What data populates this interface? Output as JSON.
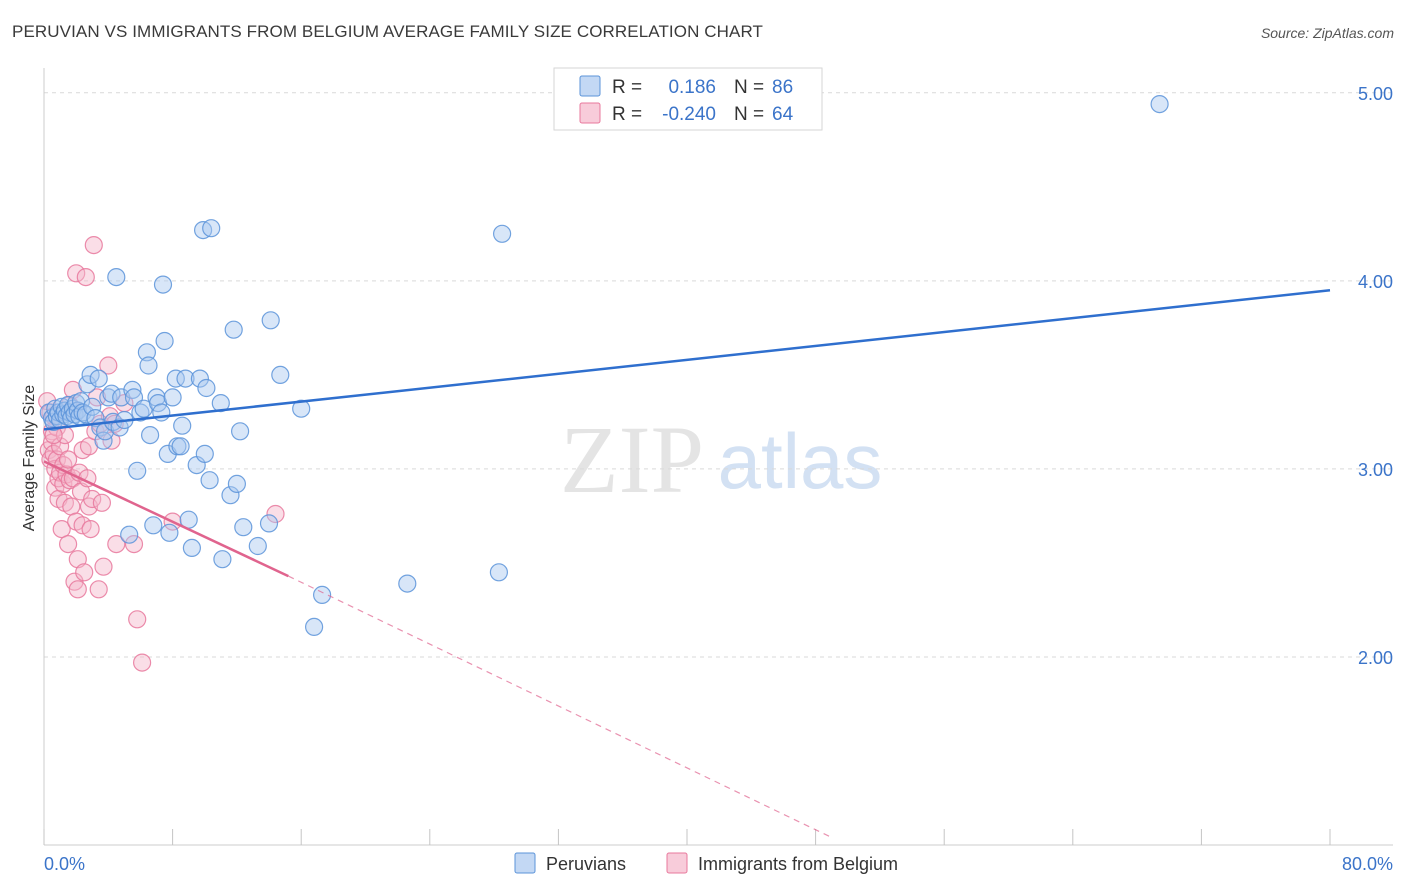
{
  "title": "PERUVIAN VS IMMIGRANTS FROM BELGIUM AVERAGE FAMILY SIZE CORRELATION CHART",
  "source": "Source: ZipAtlas.com",
  "watermark": {
    "zip": "ZIP",
    "atlas": "atlas"
  },
  "colors": {
    "blue": "#5b93d9",
    "blue_fill": "#a9c8f0",
    "blue_line": "#2f6fce",
    "pink": "#e8789c",
    "pink_fill": "#f5b6ca",
    "pink_line": "#e0648e",
    "axis_text": "#3b74c9",
    "grid": "#d9d9d9"
  },
  "legend": {
    "rows": [
      {
        "r_label": "R =",
        "r_value": "0.186",
        "n_label": "N =",
        "n_value": "86",
        "series": "blue"
      },
      {
        "r_label": "R =",
        "r_value": "-0.240",
        "n_label": "N =",
        "n_value": "64",
        "series": "pink"
      }
    ]
  },
  "bottom_legend": [
    "Peruvians",
    "Immigrants from Belgium"
  ],
  "chart_data": {
    "type": "scatter",
    "title": "PERUVIAN VS IMMIGRANTS FROM BELGIUM AVERAGE FAMILY SIZE CORRELATION CHART",
    "xlabel": "",
    "ylabel": "Average Family Size",
    "xlim": [
      0,
      80
    ],
    "ylim": [
      1.0,
      5.1
    ],
    "x_tick_labels": [
      "0.0%",
      "80.0%"
    ],
    "x_minor_ticks": [
      0,
      8,
      16,
      24,
      32,
      40,
      48,
      56,
      64,
      72,
      80
    ],
    "y_ticks": [
      2.0,
      3.0,
      4.0,
      5.0
    ],
    "y_tick_labels": [
      "2.00",
      "3.00",
      "4.00",
      "5.00"
    ],
    "series": [
      {
        "name": "Peruvians",
        "color": "blue",
        "r": 0.186,
        "n": 86,
        "trend": {
          "x0": 0,
          "y0": 3.21,
          "x1": 80,
          "y1": 3.95
        },
        "points": [
          [
            0.3,
            3.3
          ],
          [
            0.5,
            3.27
          ],
          [
            0.6,
            3.25
          ],
          [
            0.7,
            3.32
          ],
          [
            0.8,
            3.28
          ],
          [
            0.9,
            3.3
          ],
          [
            1.0,
            3.26
          ],
          [
            1.1,
            3.33
          ],
          [
            1.2,
            3.29
          ],
          [
            1.3,
            3.31
          ],
          [
            1.4,
            3.28
          ],
          [
            1.5,
            3.34
          ],
          [
            1.6,
            3.3
          ],
          [
            1.7,
            3.27
          ],
          [
            1.8,
            3.32
          ],
          [
            1.9,
            3.29
          ],
          [
            2.0,
            3.35
          ],
          [
            2.1,
            3.31
          ],
          [
            2.2,
            3.28
          ],
          [
            2.3,
            3.36
          ],
          [
            2.4,
            3.3
          ],
          [
            2.6,
            3.29
          ],
          [
            2.7,
            3.45
          ],
          [
            2.9,
            3.5
          ],
          [
            3.0,
            3.33
          ],
          [
            3.2,
            3.27
          ],
          [
            3.4,
            3.48
          ],
          [
            3.5,
            3.22
          ],
          [
            3.7,
            3.15
          ],
          [
            3.8,
            3.2
          ],
          [
            4.0,
            3.38
          ],
          [
            4.2,
            3.4
          ],
          [
            4.3,
            3.25
          ],
          [
            4.5,
            4.02
          ],
          [
            4.7,
            3.22
          ],
          [
            4.8,
            3.38
          ],
          [
            5.0,
            3.26
          ],
          [
            5.3,
            2.65
          ],
          [
            5.5,
            3.42
          ],
          [
            5.6,
            3.38
          ],
          [
            5.8,
            2.99
          ],
          [
            6.0,
            3.3
          ],
          [
            6.2,
            3.32
          ],
          [
            6.4,
            3.62
          ],
          [
            6.5,
            3.55
          ],
          [
            6.6,
            3.18
          ],
          [
            6.8,
            2.7
          ],
          [
            7.0,
            3.38
          ],
          [
            7.1,
            3.35
          ],
          [
            7.3,
            3.3
          ],
          [
            7.4,
            3.98
          ],
          [
            7.5,
            3.68
          ],
          [
            7.7,
            3.08
          ],
          [
            7.8,
            2.66
          ],
          [
            8.0,
            3.38
          ],
          [
            8.2,
            3.48
          ],
          [
            8.3,
            3.12
          ],
          [
            8.5,
            3.12
          ],
          [
            8.6,
            3.23
          ],
          [
            8.8,
            3.48
          ],
          [
            9.0,
            2.73
          ],
          [
            9.2,
            2.58
          ],
          [
            9.5,
            3.02
          ],
          [
            9.7,
            3.48
          ],
          [
            9.9,
            4.27
          ],
          [
            10.0,
            3.08
          ],
          [
            10.1,
            3.43
          ],
          [
            10.3,
            2.94
          ],
          [
            10.4,
            4.28
          ],
          [
            11.0,
            3.35
          ],
          [
            11.1,
            2.52
          ],
          [
            11.6,
            2.86
          ],
          [
            11.8,
            3.74
          ],
          [
            12.0,
            2.92
          ],
          [
            12.2,
            3.2
          ],
          [
            12.4,
            2.69
          ],
          [
            13.3,
            2.59
          ],
          [
            14.0,
            2.71
          ],
          [
            14.1,
            3.79
          ],
          [
            14.7,
            3.5
          ],
          [
            16.0,
            3.32
          ],
          [
            16.8,
            2.16
          ],
          [
            17.3,
            2.33
          ],
          [
            22.6,
            2.39
          ],
          [
            28.3,
            2.45
          ],
          [
            28.5,
            4.25
          ],
          [
            69.4,
            4.94
          ]
        ]
      },
      {
        "name": "Immigrants from Belgium",
        "color": "pink",
        "r": -0.24,
        "n": 64,
        "trend": {
          "x0": 0,
          "y0": 3.04,
          "x1": 15.2,
          "y1": 2.43,
          "dash_x1": 49,
          "dash_y1": 1.04
        },
        "points": [
          [
            0.2,
            3.36
          ],
          [
            0.3,
            3.1
          ],
          [
            0.4,
            3.3
          ],
          [
            0.4,
            3.05
          ],
          [
            0.5,
            3.2
          ],
          [
            0.5,
            3.14
          ],
          [
            0.6,
            3.08
          ],
          [
            0.6,
            3.28
          ],
          [
            0.7,
            3.0
          ],
          [
            0.7,
            2.9
          ],
          [
            0.8,
            3.22
          ],
          [
            0.8,
            3.05
          ],
          [
            0.9,
            2.84
          ],
          [
            0.9,
            2.95
          ],
          [
            1.0,
            3.12
          ],
          [
            1.0,
            2.98
          ],
          [
            1.1,
            2.68
          ],
          [
            1.2,
            2.92
          ],
          [
            1.2,
            3.02
          ],
          [
            1.3,
            2.82
          ],
          [
            1.3,
            3.18
          ],
          [
            1.4,
            2.97
          ],
          [
            1.5,
            2.6
          ],
          [
            1.5,
            3.05
          ],
          [
            1.6,
            2.94
          ],
          [
            1.6,
            3.34
          ],
          [
            1.7,
            2.8
          ],
          [
            1.8,
            2.95
          ],
          [
            1.8,
            3.42
          ],
          [
            1.9,
            2.4
          ],
          [
            2.0,
            4.04
          ],
          [
            2.0,
            2.72
          ],
          [
            2.1,
            2.52
          ],
          [
            2.1,
            2.36
          ],
          [
            2.2,
            2.98
          ],
          [
            2.3,
            2.88
          ],
          [
            2.4,
            2.7
          ],
          [
            2.4,
            3.1
          ],
          [
            2.5,
            2.45
          ],
          [
            2.6,
            4.02
          ],
          [
            2.7,
            2.95
          ],
          [
            2.8,
            2.8
          ],
          [
            2.8,
            3.12
          ],
          [
            2.9,
            2.68
          ],
          [
            3.0,
            2.84
          ],
          [
            3.1,
            4.19
          ],
          [
            3.2,
            3.2
          ],
          [
            3.3,
            3.38
          ],
          [
            3.4,
            2.36
          ],
          [
            3.5,
            3.24
          ],
          [
            3.6,
            2.82
          ],
          [
            3.7,
            2.48
          ],
          [
            4.0,
            3.55
          ],
          [
            4.1,
            3.28
          ],
          [
            4.2,
            3.15
          ],
          [
            4.4,
            3.24
          ],
          [
            4.5,
            2.6
          ],
          [
            5.0,
            3.35
          ],
          [
            5.6,
            2.6
          ],
          [
            5.8,
            2.2
          ],
          [
            6.1,
            1.97
          ],
          [
            8.0,
            2.72
          ],
          [
            14.4,
            2.76
          ],
          [
            0.6,
            3.18
          ]
        ]
      }
    ]
  }
}
